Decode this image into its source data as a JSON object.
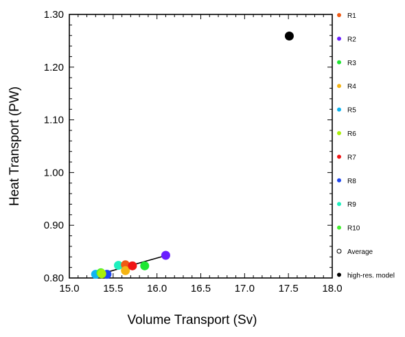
{
  "chart_data": {
    "type": "scatter",
    "xlabel": "Volume Transport (Sv)",
    "ylabel": "Heat Transport (PW)",
    "xlim": [
      15.0,
      18.0
    ],
    "ylim": [
      0.8,
      1.3
    ],
    "xticks": [
      "15.0",
      "15.5",
      "16.0",
      "16.5",
      "17.0",
      "17.5",
      "18.0"
    ],
    "yticks": [
      "0.80",
      "0.90",
      "1.00",
      "1.10",
      "1.20",
      "1.30"
    ],
    "grid": false,
    "legend_position": "right",
    "series": [
      {
        "name": "R1",
        "color": "#f05a14",
        "x": 15.64,
        "y": 0.825
      },
      {
        "name": "R2",
        "color": "#6a1eff",
        "x": 16.1,
        "y": 0.843
      },
      {
        "name": "R3",
        "color": "#1ee632",
        "x": 15.86,
        "y": 0.823
      },
      {
        "name": "R4",
        "color": "#f5b414",
        "x": 15.64,
        "y": 0.814
      },
      {
        "name": "R5",
        "color": "#10b4f0",
        "x": 15.3,
        "y": 0.807
      },
      {
        "name": "R6",
        "color": "#aaf00a",
        "x": 15.37,
        "y": 0.808
      },
      {
        "name": "R7",
        "color": "#f01414",
        "x": 15.72,
        "y": 0.823
      },
      {
        "name": "R8",
        "color": "#1e46f0",
        "x": 15.43,
        "y": 0.807
      },
      {
        "name": "R9",
        "color": "#1ef0be",
        "x": 15.56,
        "y": 0.824
      },
      {
        "name": "R10",
        "color": "#46f032",
        "x": 15.36,
        "y": 0.81
      },
      {
        "name": "Average",
        "color": "#ffffff",
        "marker": "hollow"
      },
      {
        "name": "high-res. model",
        "color": "#000000",
        "x": 17.51,
        "y": 1.259
      }
    ],
    "regression_line": {
      "x": [
        15.28,
        16.11
      ],
      "y": [
        0.804,
        0.843
      ],
      "color": "#000000"
    }
  }
}
